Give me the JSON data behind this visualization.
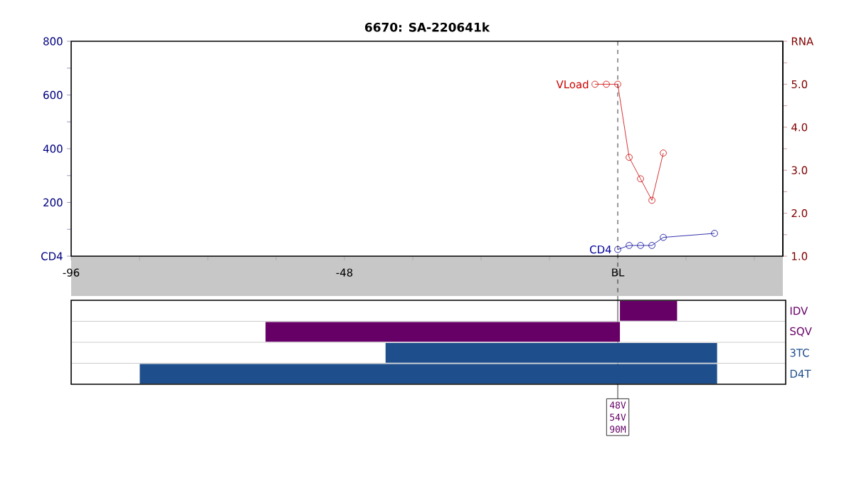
{
  "chart_data": [
    {
      "type": "line",
      "title": "6670: SA-220641k",
      "marker": "circle",
      "series": [
        {
          "name": "CD4",
          "color": "#000099",
          "axis": "y",
          "x": [
            0,
            2,
            4,
            6,
            8,
            17
          ],
          "values": [
            25,
            40,
            40,
            40,
            70,
            85
          ]
        },
        {
          "name": "VLoad",
          "color": "#cc0000",
          "axis": "y2",
          "x": [
            -4,
            -2,
            0,
            2,
            4,
            6,
            8
          ],
          "values": [
            5.0,
            5.0,
            5.0,
            3.3,
            2.8,
            2.3,
            3.4
          ]
        }
      ],
      "xlim": [
        -96,
        29
      ],
      "xticks": [
        -96,
        {
          "value": -84,
          "label": null
        },
        {
          "value": -72,
          "label": null
        },
        {
          "value": -60,
          "label": null
        },
        -48,
        {
          "value": -36,
          "label": null
        },
        {
          "value": -24,
          "label": null
        },
        {
          "value": -12,
          "label": null
        },
        {
          "value": 0,
          "label": "BL"
        },
        {
          "value": 12,
          "label": null
        },
        {
          "value": 24,
          "label": null
        }
      ],
      "ylim": [
        0,
        800
      ],
      "yticks": [
        {
          "value": 0,
          "label": "CD4"
        },
        {
          "value": 100,
          "label": null
        },
        200,
        {
          "value": 300,
          "label": null
        },
        400,
        {
          "value": 500,
          "label": null
        },
        600,
        {
          "value": 700,
          "label": null
        },
        800
      ],
      "y2lim": [
        1,
        6
      ],
      "y2ticks": [
        {
          "value": 1,
          "label": "1.0"
        },
        {
          "value": 1.5,
          "label": null
        },
        {
          "value": 2,
          "label": "2.0"
        },
        {
          "value": 2.5,
          "label": null
        },
        {
          "value": 3,
          "label": "3.0"
        },
        {
          "value": 3.5,
          "label": null
        },
        {
          "value": 4,
          "label": "4.0"
        },
        {
          "value": 4.5,
          "label": null
        },
        {
          "value": 5,
          "label": "5.0"
        },
        {
          "value": 5.5,
          "label": null
        },
        {
          "value": 6,
          "label": "RNA"
        }
      ],
      "ref_lines": [
        {
          "axis": "x",
          "value": 0,
          "line_style": "dashed",
          "color": "#000000"
        }
      ],
      "annotations": [
        "48V",
        "54V",
        "90M"
      ]
    },
    {
      "type": "bar",
      "orientation": "horizontal",
      "tick_labels": "y",
      "categories": [
        "IDV",
        "SQV",
        "3TC",
        "D4T"
      ],
      "base": [
        0,
        -62,
        -41,
        -84
      ],
      "values": [
        10,
        62,
        58,
        101
      ],
      "colors": [
        "#660066",
        "#660066",
        "#1f4e8c",
        "#1f4e8c"
      ],
      "xlim": [
        -96,
        29
      ]
    }
  ]
}
